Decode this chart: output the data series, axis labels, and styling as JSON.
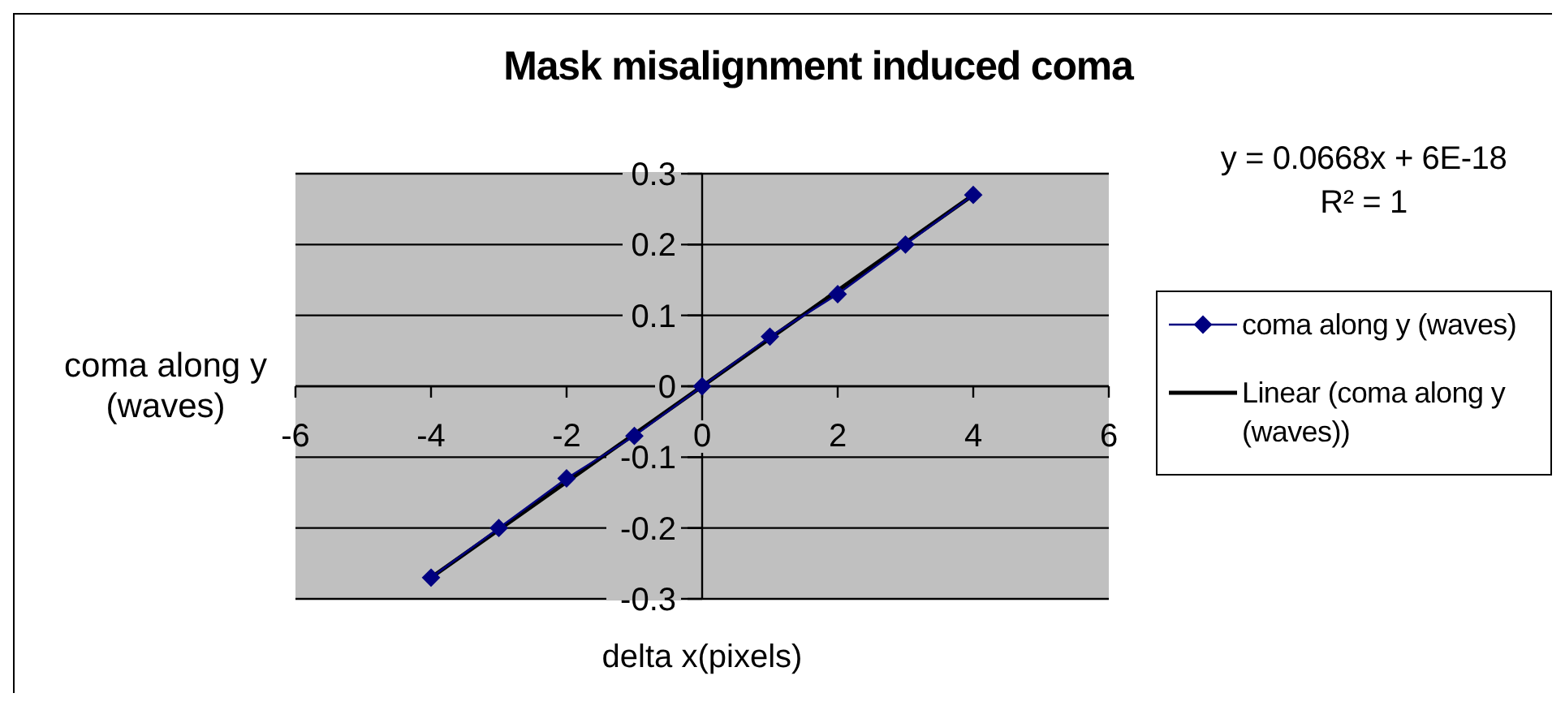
{
  "chart_data": {
    "type": "line",
    "title": "Mask misalignment induced coma",
    "xlabel": "delta x(pixels)",
    "ylabel": "coma along y (waves)",
    "annotations": [
      "y = 0.0668x + 6E-18",
      "R² = 1"
    ],
    "series": [
      {
        "name": "coma along y (waves)",
        "color": "#000080",
        "marker": "diamond",
        "x": [
          -4,
          -3,
          -2,
          -1,
          0,
          1,
          2,
          3,
          4
        ],
        "values": [
          -0.27,
          -0.2,
          -0.13,
          -0.07,
          0,
          0.07,
          0.13,
          0.2,
          0.27
        ]
      },
      {
        "name": "Linear (coma along y (waves))",
        "color": "#000000",
        "marker": "none",
        "x": [
          -4,
          4
        ],
        "values": [
          -0.27,
          0.27
        ]
      }
    ],
    "xlim": [
      -6,
      6
    ],
    "xticks": [
      -6,
      -4,
      -2,
      0,
      2,
      4,
      6
    ],
    "ylim": [
      -0.3,
      0.3
    ],
    "yticks": [
      -0.3,
      -0.2,
      -0.1,
      0,
      0.1,
      0.2,
      0.3
    ],
    "grid": "y",
    "legend": "right"
  }
}
